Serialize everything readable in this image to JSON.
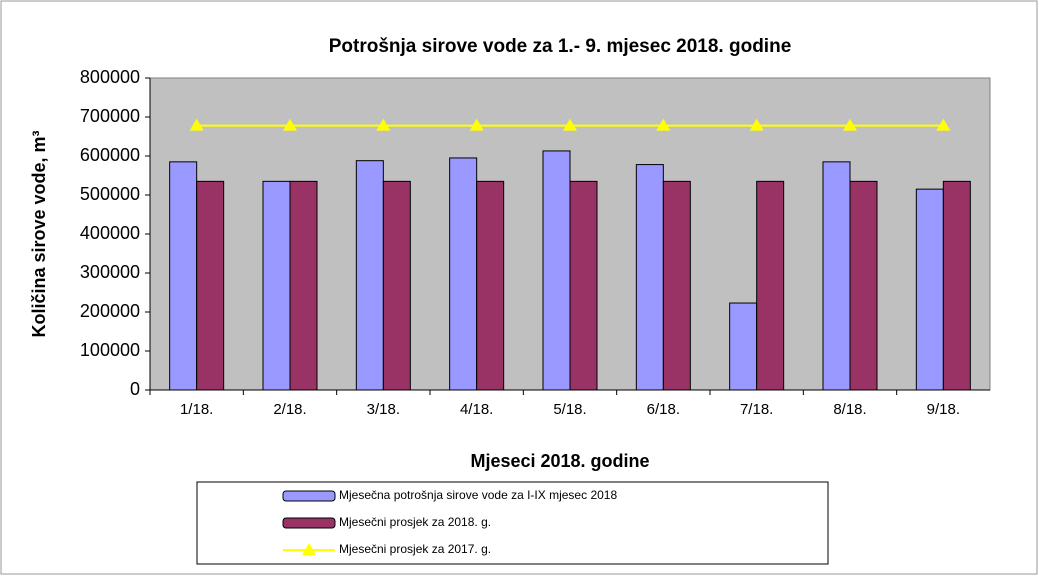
{
  "chart_data": {
    "type": "bar",
    "title": "Potrošnja sirove vode za 1.- 9. mjesec 2018. godine",
    "x_label": "Mjeseci  2018. godine",
    "y_label": "Količina sirove vode, m³",
    "categories": [
      "1/18.",
      "2/18.",
      "3/18.",
      "4/18.",
      "5/18.",
      "6/18.",
      "7/18.",
      "8/18.",
      "9/18."
    ],
    "series": [
      {
        "name": "Mjesečna potrošnja sirove vode za I-IX mjesec 2018",
        "color": "#9999ff",
        "type": "bar",
        "values": [
          585000,
          535000,
          588000,
          595000,
          613000,
          578000,
          223000,
          585000,
          515000
        ]
      },
      {
        "name": "Mjesečni prosjek za 2018. g.",
        "color": "#993366",
        "type": "bar",
        "values": [
          535000,
          535000,
          535000,
          535000,
          535000,
          535000,
          535000,
          535000,
          535000
        ]
      },
      {
        "name": "Mjesečni prosjek za 2017. g.",
        "color": "#ffff00",
        "type": "line",
        "values": [
          678000,
          678000,
          678000,
          678000,
          678000,
          678000,
          678000,
          678000,
          678000
        ]
      }
    ],
    "ylim": [
      0,
      800000
    ],
    "yticks": [
      0,
      100000,
      200000,
      300000,
      400000,
      500000,
      600000,
      700000,
      800000
    ],
    "grid": false
  }
}
